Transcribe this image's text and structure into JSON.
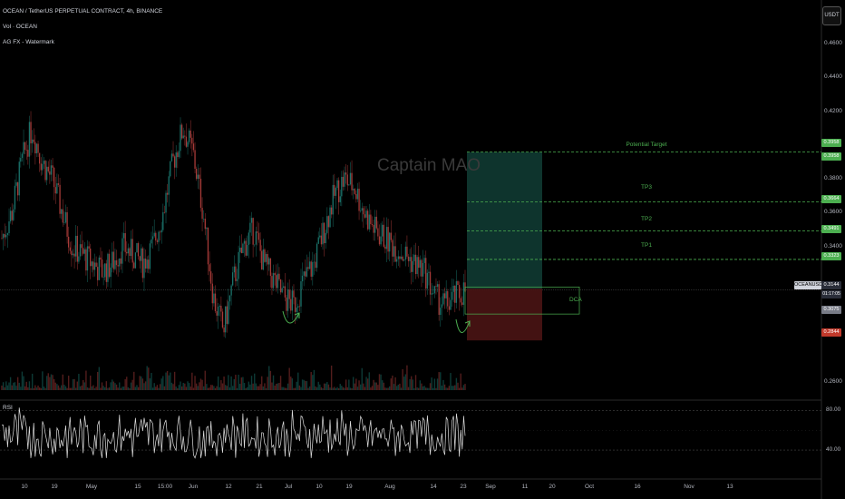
{
  "legend": {
    "title": "OCEAN / TetherUS PERPETUAL CONTRACT, 4h, BINANCE",
    "vol": "Vol · OCEAN",
    "watermark_ind": "AG FX - Watermark"
  },
  "watermark": "Captain MAO",
  "currency_button": "USDT",
  "rsi_label": "RSI",
  "price_axis": [
    "0.4600",
    "0.4400",
    "0.4200",
    "0.3800",
    "0.3600",
    "0.3400",
    "0.2600"
  ],
  "rsi_axis": [
    "80.00",
    "40.00"
  ],
  "date_axis": [
    "10",
    "19",
    "May",
    "15",
    "15:00",
    "Jun",
    "12",
    "21",
    "Jul",
    "10",
    "19",
    "Aug",
    "14",
    "23",
    "Sep",
    "11",
    "20",
    "Oct",
    "16",
    "Nov",
    "13"
  ],
  "targets": [
    {
      "label": "Potential Target",
      "price": "0.3958"
    },
    {
      "label": "TP3",
      "price": "0.3664"
    },
    {
      "label": "TP2",
      "price": "0.3491"
    },
    {
      "label": "TP1",
      "price": "0.3323"
    }
  ],
  "dca_label": "DCA",
  "symbol_tag": "OCEANUSDT.P",
  "current_price": "0.3144",
  "countdown": "01:17:05",
  "entry_price": "0.3075",
  "stop_price": "0.2844",
  "colors": {
    "bg": "#000000",
    "target_green": "#4caf50",
    "target_zone": "#0f3a32",
    "stop_zone": "#4a1414",
    "candle_up": "#26a69a",
    "candle_down": "#ef5350"
  },
  "chart_data": {
    "type": "candlestick",
    "timeframe": "4h",
    "ylim": [
      0.255,
      0.475
    ],
    "price_series_approx": [
      0.345,
      0.36,
      0.39,
      0.41,
      0.39,
      0.38,
      0.36,
      0.34,
      0.335,
      0.33,
      0.325,
      0.33,
      0.34,
      0.335,
      0.33,
      0.34,
      0.36,
      0.39,
      0.41,
      0.395,
      0.36,
      0.31,
      0.29,
      0.32,
      0.34,
      0.35,
      0.33,
      0.32,
      0.31,
      0.305,
      0.32,
      0.33,
      0.35,
      0.37,
      0.38,
      0.375,
      0.36,
      0.35,
      0.345,
      0.34,
      0.335,
      0.33,
      0.325,
      0.31,
      0.305,
      0.31,
      0.314
    ],
    "rsi": {
      "upper": 80,
      "lower": 40
    }
  }
}
